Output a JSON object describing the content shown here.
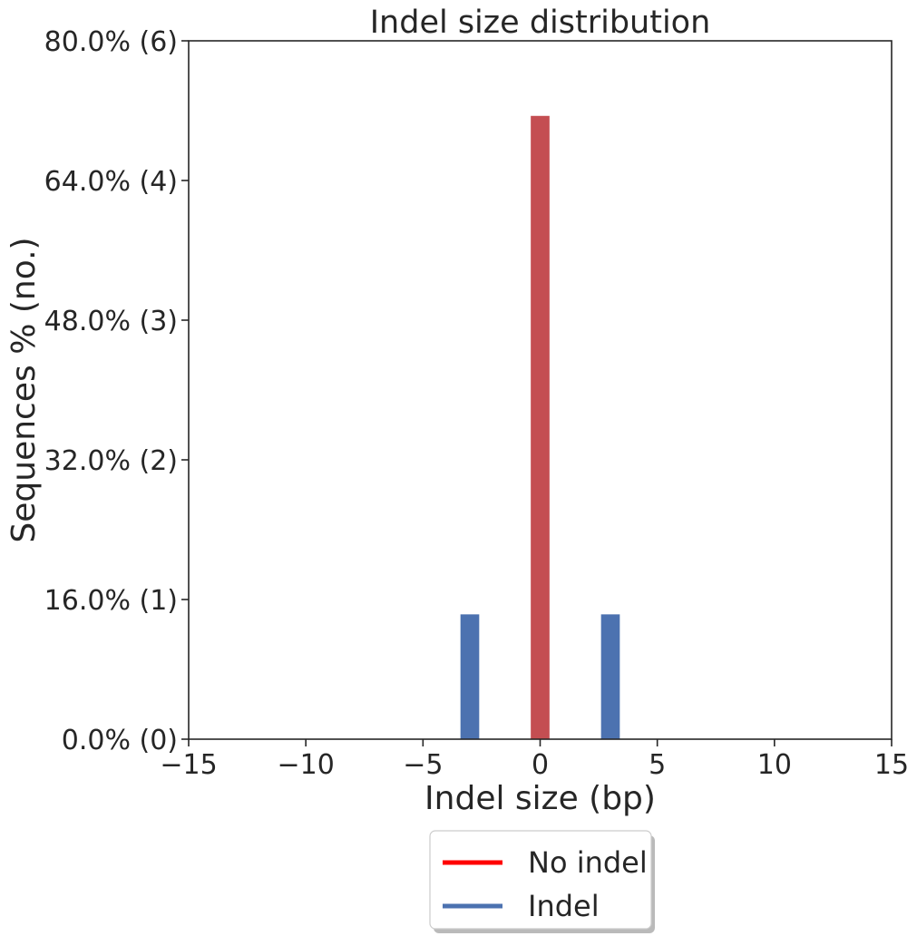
{
  "chart_data": {
    "type": "bar",
    "title": "Indel size distribution",
    "xlabel": "Indel size (bp)",
    "ylabel": "Sequences % (no.)",
    "xlim": [
      -15,
      15
    ],
    "ylim": [
      0,
      80
    ],
    "x_ticks": [
      -15,
      -10,
      -5,
      0,
      5,
      10,
      15
    ],
    "x_tick_labels": [
      "−15",
      "−10",
      "−5",
      "0",
      "5",
      "10",
      "15"
    ],
    "y_ticks": [
      0,
      16,
      32,
      48,
      64,
      80
    ],
    "y_tick_labels": [
      "0.0% (0)",
      "16.0% (1)",
      "32.0% (2)",
      "48.0% (3)",
      "64.0% (4)",
      "80.0% (6)"
    ],
    "grid": false,
    "legend_position": "bottom-center",
    "series": [
      {
        "name": "No indel",
        "color": "#c44e52",
        "legend_color": "#ff0000",
        "bars": [
          {
            "x": 0,
            "y": 71.4
          }
        ]
      },
      {
        "name": "Indel",
        "color": "#4c72b0",
        "legend_color": "#4c72b0",
        "bars": [
          {
            "x": -3,
            "y": 14.3
          },
          {
            "x": 3,
            "y": 14.3
          }
        ]
      }
    ]
  }
}
